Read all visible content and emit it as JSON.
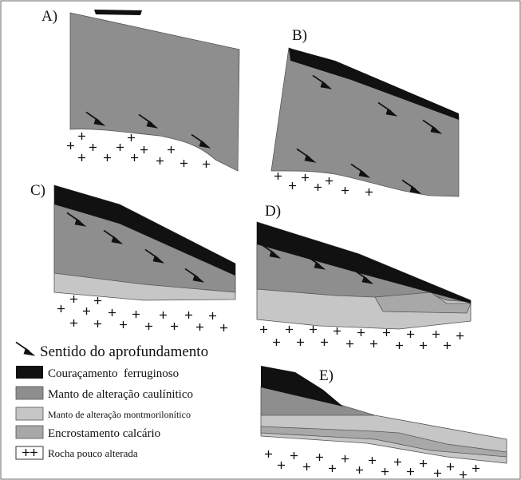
{
  "panels": [
    {
      "label": "A)"
    },
    {
      "label": "B)"
    },
    {
      "label": "C)"
    },
    {
      "label": "D)"
    },
    {
      "label": "E)"
    }
  ],
  "legend": {
    "arrow": "Sentido do aprofundamento",
    "items": [
      "Couraçamento  ferruginoso",
      "Manto de alteração caulínitico",
      "Manto de alteração montmorilonítico",
      "Encrostamento calcário",
      "Rocha pouco alterada"
    ]
  }
}
